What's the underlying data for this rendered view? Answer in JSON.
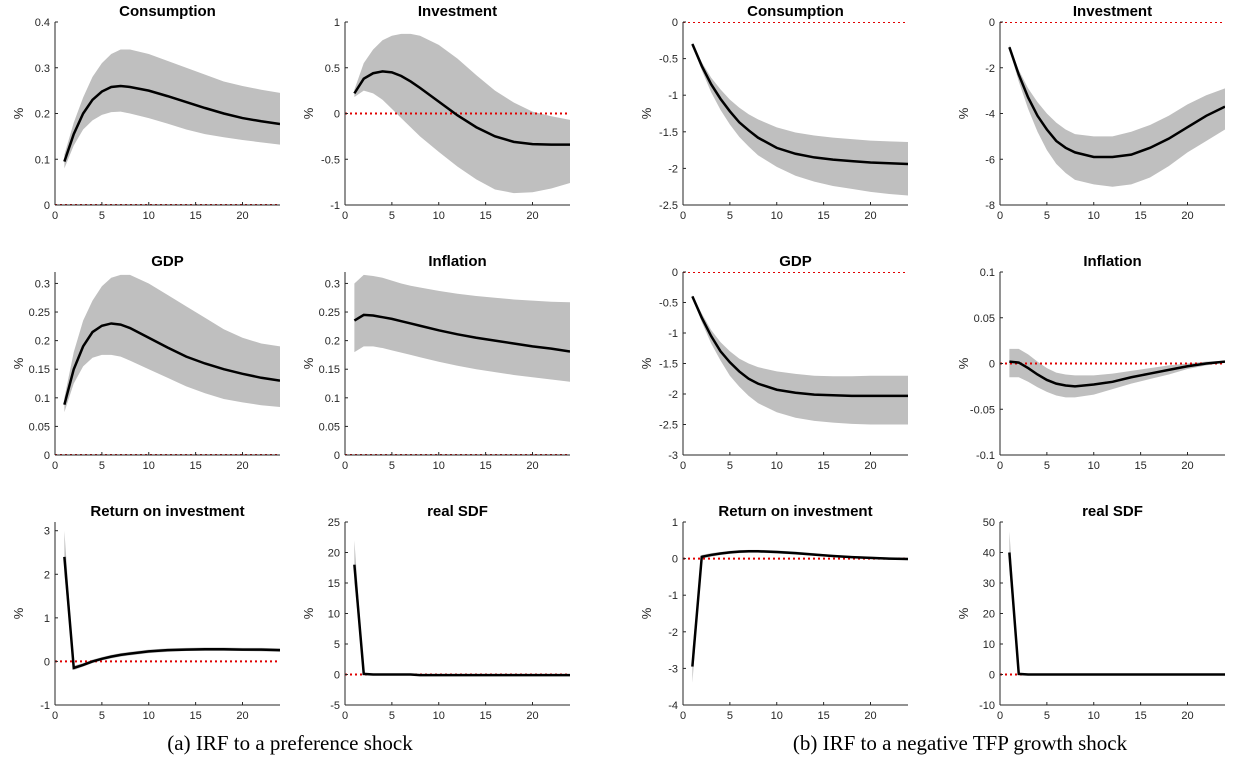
{
  "chart_data": [
    {
      "type": "line",
      "title": "Consumption",
      "ylabel": "%",
      "x": [
        1,
        2,
        3,
        4,
        5,
        6,
        7,
        8,
        10,
        12,
        14,
        16,
        18,
        20,
        22,
        24
      ],
      "values": [
        0.095,
        0.155,
        0.2,
        0.23,
        0.248,
        0.258,
        0.26,
        0.258,
        0.25,
        0.238,
        0.225,
        0.212,
        0.2,
        0.19,
        0.183,
        0.177
      ],
      "band_lower": [
        0.08,
        0.13,
        0.165,
        0.185,
        0.197,
        0.203,
        0.204,
        0.2,
        0.19,
        0.178,
        0.165,
        0.155,
        0.148,
        0.142,
        0.137,
        0.132
      ],
      "band_upper": [
        0.11,
        0.18,
        0.235,
        0.28,
        0.31,
        0.33,
        0.34,
        0.34,
        0.33,
        0.315,
        0.3,
        0.285,
        0.27,
        0.26,
        0.252,
        0.245
      ],
      "xlim": [
        0,
        24
      ],
      "xticks": [
        0,
        5,
        10,
        15,
        20
      ],
      "ylim": [
        0,
        0.4
      ],
      "yticks": [
        0,
        0.1,
        0.2,
        0.3,
        0.4
      ],
      "hline": 0
    },
    {
      "type": "line",
      "title": "Investment",
      "ylabel": "%",
      "x": [
        1,
        2,
        3,
        4,
        5,
        6,
        7,
        8,
        10,
        12,
        14,
        16,
        18,
        20,
        22,
        24
      ],
      "values": [
        0.22,
        0.38,
        0.44,
        0.46,
        0.45,
        0.41,
        0.35,
        0.28,
        0.13,
        -0.02,
        -0.15,
        -0.25,
        -0.31,
        -0.335,
        -0.34,
        -0.34
      ],
      "band_lower": [
        0.18,
        0.25,
        0.22,
        0.15,
        0.05,
        -0.05,
        -0.15,
        -0.25,
        -0.42,
        -0.58,
        -0.72,
        -0.83,
        -0.87,
        -0.86,
        -0.82,
        -0.76
      ],
      "band_upper": [
        0.26,
        0.55,
        0.7,
        0.8,
        0.85,
        0.87,
        0.87,
        0.85,
        0.75,
        0.6,
        0.42,
        0.25,
        0.12,
        0.02,
        -0.03,
        -0.07
      ],
      "xlim": [
        0,
        24
      ],
      "xticks": [
        0,
        5,
        10,
        15,
        20
      ],
      "ylim": [
        -1,
        1
      ],
      "yticks": [
        -1,
        -0.5,
        0,
        0.5,
        1
      ],
      "hline": 0
    },
    {
      "type": "line",
      "title": "GDP",
      "ylabel": "%",
      "x": [
        1,
        2,
        3,
        4,
        5,
        6,
        7,
        8,
        10,
        12,
        14,
        16,
        18,
        20,
        22,
        24
      ],
      "values": [
        0.088,
        0.15,
        0.19,
        0.215,
        0.226,
        0.23,
        0.228,
        0.222,
        0.205,
        0.188,
        0.172,
        0.16,
        0.15,
        0.142,
        0.135,
        0.13
      ],
      "band_lower": [
        0.075,
        0.125,
        0.155,
        0.17,
        0.175,
        0.175,
        0.172,
        0.165,
        0.15,
        0.135,
        0.12,
        0.108,
        0.098,
        0.092,
        0.087,
        0.084
      ],
      "band_upper": [
        0.1,
        0.18,
        0.235,
        0.27,
        0.295,
        0.31,
        0.315,
        0.315,
        0.3,
        0.28,
        0.26,
        0.24,
        0.22,
        0.205,
        0.195,
        0.19
      ],
      "xlim": [
        0,
        24
      ],
      "xticks": [
        0,
        5,
        10,
        15,
        20
      ],
      "ylim": [
        0,
        0.32
      ],
      "yticks": [
        0,
        0.05,
        0.1,
        0.15,
        0.2,
        0.25,
        0.3
      ],
      "hline": 0
    },
    {
      "type": "line",
      "title": "Inflation",
      "ylabel": "%",
      "x": [
        1,
        2,
        3,
        4,
        5,
        6,
        7,
        8,
        10,
        12,
        14,
        16,
        18,
        20,
        22,
        24
      ],
      "values": [
        0.235,
        0.245,
        0.244,
        0.241,
        0.238,
        0.234,
        0.23,
        0.226,
        0.218,
        0.211,
        0.205,
        0.2,
        0.195,
        0.19,
        0.186,
        0.181
      ],
      "band_lower": [
        0.18,
        0.19,
        0.19,
        0.187,
        0.183,
        0.179,
        0.175,
        0.171,
        0.163,
        0.156,
        0.15,
        0.145,
        0.14,
        0.136,
        0.132,
        0.128
      ],
      "band_upper": [
        0.3,
        0.315,
        0.313,
        0.31,
        0.305,
        0.3,
        0.296,
        0.293,
        0.287,
        0.282,
        0.278,
        0.275,
        0.272,
        0.27,
        0.268,
        0.267
      ],
      "xlim": [
        0,
        24
      ],
      "xticks": [
        0,
        5,
        10,
        15,
        20
      ],
      "ylim": [
        0,
        0.32
      ],
      "yticks": [
        0,
        0.05,
        0.1,
        0.15,
        0.2,
        0.25,
        0.3
      ],
      "hline": 0
    },
    {
      "type": "line",
      "title": "Return on investment",
      "ylabel": "%",
      "x": [
        1,
        2,
        3,
        4,
        5,
        6,
        7,
        8,
        10,
        12,
        14,
        16,
        18,
        20,
        22,
        24
      ],
      "values": [
        2.4,
        -0.15,
        -0.08,
        0,
        0.06,
        0.11,
        0.15,
        0.18,
        0.23,
        0.26,
        0.27,
        0.28,
        0.28,
        0.27,
        0.27,
        0.26
      ],
      "band_lower": [
        2.0,
        -0.2,
        -0.12,
        -0.04,
        0.02,
        0.07,
        0.11,
        0.14,
        0.19,
        0.22,
        0.24,
        0.24,
        0.24,
        0.24,
        0.23,
        0.22
      ],
      "band_upper": [
        3.0,
        -0.1,
        -0.04,
        0.04,
        0.1,
        0.15,
        0.19,
        0.22,
        0.27,
        0.3,
        0.31,
        0.32,
        0.32,
        0.31,
        0.31,
        0.3
      ],
      "xlim": [
        0,
        24
      ],
      "xticks": [
        0,
        5,
        10,
        15,
        20
      ],
      "ylim": [
        -1,
        3.2
      ],
      "yticks": [
        -1,
        0,
        1,
        2,
        3
      ],
      "hline": 0
    },
    {
      "type": "line",
      "title": "real SDF",
      "ylabel": "%",
      "x": [
        1,
        2,
        3,
        4,
        5,
        6,
        7,
        8,
        10,
        12,
        14,
        16,
        18,
        20,
        22,
        24
      ],
      "values": [
        18,
        0.1,
        0,
        0,
        0,
        0,
        0,
        -0.1,
        -0.1,
        -0.1,
        -0.1,
        -0.1,
        -0.1,
        -0.1,
        -0.1,
        -0.1
      ],
      "band_lower": [
        15,
        0,
        -0.1,
        -0.1,
        -0.1,
        -0.1,
        -0.1,
        -0.2,
        -0.2,
        -0.2,
        -0.2,
        -0.2,
        -0.2,
        -0.2,
        -0.2,
        -0.2
      ],
      "band_upper": [
        22,
        0.3,
        0.1,
        0.1,
        0.1,
        0.1,
        0.1,
        0,
        0,
        0,
        0,
        0,
        0,
        0,
        0,
        0
      ],
      "xlim": [
        0,
        24
      ],
      "xticks": [
        0,
        5,
        10,
        15,
        20
      ],
      "ylim": [
        -5,
        25
      ],
      "yticks": [
        -5,
        0,
        5,
        10,
        15,
        20,
        25
      ],
      "hline": 0
    },
    {
      "type": "line",
      "title": "Consumption",
      "ylabel": "%",
      "x": [
        1,
        2,
        3,
        4,
        5,
        6,
        7,
        8,
        10,
        12,
        14,
        16,
        18,
        20,
        22,
        24
      ],
      "values": [
        -0.3,
        -0.6,
        -0.85,
        -1.05,
        -1.22,
        -1.37,
        -1.48,
        -1.58,
        -1.72,
        -1.8,
        -1.85,
        -1.88,
        -1.9,
        -1.92,
        -1.93,
        -1.94
      ],
      "band_lower": [
        -0.32,
        -0.66,
        -0.96,
        -1.2,
        -1.4,
        -1.57,
        -1.7,
        -1.82,
        -1.98,
        -2.1,
        -2.18,
        -2.24,
        -2.28,
        -2.32,
        -2.35,
        -2.37
      ],
      "band_upper": [
        -0.28,
        -0.55,
        -0.76,
        -0.92,
        -1.06,
        -1.17,
        -1.26,
        -1.33,
        -1.44,
        -1.51,
        -1.55,
        -1.58,
        -1.6,
        -1.62,
        -1.63,
        -1.64
      ],
      "xlim": [
        0,
        24
      ],
      "xticks": [
        0,
        5,
        10,
        15,
        20
      ],
      "ylim": [
        -2.5,
        0
      ],
      "yticks": [
        -2.5,
        -2,
        -1.5,
        -1,
        -0.5,
        0
      ],
      "hline": 0
    },
    {
      "type": "line",
      "title": "Investment",
      "ylabel": "%",
      "x": [
        1,
        2,
        3,
        4,
        5,
        6,
        7,
        8,
        10,
        12,
        14,
        16,
        18,
        20,
        22,
        24
      ],
      "values": [
        -1.1,
        -2.3,
        -3.3,
        -4.1,
        -4.7,
        -5.2,
        -5.5,
        -5.7,
        -5.9,
        -5.9,
        -5.8,
        -5.5,
        -5.1,
        -4.6,
        -4.1,
        -3.7
      ],
      "band_lower": [
        -1.2,
        -2.6,
        -3.8,
        -4.8,
        -5.6,
        -6.2,
        -6.6,
        -6.9,
        -7.1,
        -7.2,
        -7.1,
        -6.8,
        -6.3,
        -5.7,
        -5.2,
        -4.7
      ],
      "band_upper": [
        -1.0,
        -2.1,
        -2.9,
        -3.5,
        -4.0,
        -4.4,
        -4.7,
        -4.9,
        -5.0,
        -5.0,
        -4.8,
        -4.5,
        -4.1,
        -3.6,
        -3.2,
        -2.9
      ],
      "xlim": [
        0,
        24
      ],
      "xticks": [
        0,
        5,
        10,
        15,
        20
      ],
      "ylim": [
        -8,
        0
      ],
      "yticks": [
        -8,
        -6,
        -4,
        -2,
        0
      ],
      "hline": 0
    },
    {
      "type": "line",
      "title": "GDP",
      "ylabel": "%",
      "x": [
        1,
        2,
        3,
        4,
        5,
        6,
        7,
        8,
        10,
        12,
        14,
        16,
        18,
        20,
        22,
        24
      ],
      "values": [
        -0.4,
        -0.75,
        -1.05,
        -1.3,
        -1.48,
        -1.63,
        -1.75,
        -1.83,
        -1.93,
        -1.98,
        -2.01,
        -2.02,
        -2.03,
        -2.03,
        -2.03,
        -2.03
      ],
      "band_lower": [
        -0.42,
        -0.82,
        -1.17,
        -1.45,
        -1.7,
        -1.88,
        -2.03,
        -2.15,
        -2.3,
        -2.39,
        -2.44,
        -2.47,
        -2.49,
        -2.5,
        -2.5,
        -2.5
      ],
      "band_upper": [
        -0.38,
        -0.68,
        -0.95,
        -1.15,
        -1.3,
        -1.42,
        -1.5,
        -1.56,
        -1.63,
        -1.67,
        -1.7,
        -1.71,
        -1.71,
        -1.7,
        -1.7,
        -1.7
      ],
      "xlim": [
        0,
        24
      ],
      "xticks": [
        0,
        5,
        10,
        15,
        20
      ],
      "ylim": [
        -3,
        0
      ],
      "yticks": [
        -3,
        -2.5,
        -2,
        -1.5,
        -1,
        -0.5,
        0
      ],
      "hline": 0
    },
    {
      "type": "line",
      "title": "Inflation",
      "ylabel": "%",
      "x": [
        1,
        2,
        3,
        4,
        5,
        6,
        7,
        8,
        10,
        12,
        14,
        16,
        18,
        20,
        22,
        24
      ],
      "values": [
        0.002,
        0.001,
        -0.005,
        -0.012,
        -0.018,
        -0.022,
        -0.024,
        -0.025,
        -0.023,
        -0.02,
        -0.015,
        -0.011,
        -0.007,
        -0.003,
        0,
        0.002
      ],
      "band_lower": [
        -0.015,
        -0.015,
        -0.02,
        -0.026,
        -0.031,
        -0.035,
        -0.037,
        -0.037,
        -0.034,
        -0.028,
        -0.022,
        -0.017,
        -0.012,
        -0.006,
        -0.002,
        0.001
      ],
      "band_upper": [
        0.016,
        0.016,
        0.01,
        0.002,
        -0.005,
        -0.01,
        -0.012,
        -0.013,
        -0.013,
        -0.011,
        -0.008,
        -0.005,
        -0.002,
        0,
        0.002,
        0.003
      ],
      "xlim": [
        0,
        24
      ],
      "xticks": [
        0,
        5,
        10,
        15,
        20
      ],
      "ylim": [
        -0.1,
        0.1
      ],
      "yticks": [
        -0.1,
        -0.05,
        0,
        0.05,
        0.1
      ],
      "hline": 0
    },
    {
      "type": "line",
      "title": "Return on investment",
      "ylabel": "%",
      "x": [
        1,
        2,
        3,
        4,
        5,
        6,
        7,
        8,
        10,
        12,
        14,
        16,
        18,
        20,
        22,
        24
      ],
      "values": [
        -2.95,
        0.05,
        0.1,
        0.14,
        0.17,
        0.19,
        0.2,
        0.2,
        0.18,
        0.15,
        0.11,
        0.07,
        0.04,
        0.02,
        0,
        -0.01
      ],
      "band_lower": [
        -3.4,
        0,
        0.05,
        0.1,
        0.13,
        0.15,
        0.16,
        0.16,
        0.14,
        0.11,
        0.08,
        0.04,
        0.01,
        -0.01,
        -0.03,
        -0.04
      ],
      "band_upper": [
        -2.5,
        0.1,
        0.15,
        0.18,
        0.21,
        0.23,
        0.24,
        0.24,
        0.22,
        0.19,
        0.15,
        0.1,
        0.07,
        0.05,
        0.03,
        0.02
      ],
      "xlim": [
        0,
        24
      ],
      "xticks": [
        0,
        5,
        10,
        15,
        20
      ],
      "ylim": [
        -4,
        1
      ],
      "yticks": [
        -4,
        -3,
        -2,
        -1,
        0,
        1
      ],
      "hline": 0
    },
    {
      "type": "line",
      "title": "real SDF",
      "ylabel": "%",
      "x": [
        1,
        2,
        3,
        4,
        5,
        6,
        7,
        8,
        10,
        12,
        14,
        16,
        18,
        20,
        22,
        24
      ],
      "values": [
        40,
        0.2,
        0,
        0,
        0,
        0,
        0,
        0,
        0,
        0,
        0,
        0,
        0,
        0,
        0,
        0
      ],
      "band_lower": [
        34,
        0,
        -0.2,
        -0.2,
        -0.2,
        -0.2,
        -0.2,
        -0.2,
        -0.2,
        -0.2,
        -0.2,
        -0.2,
        -0.2,
        -0.2,
        -0.2,
        -0.2
      ],
      "band_upper": [
        47,
        0.4,
        0.2,
        0.2,
        0.2,
        0.2,
        0.2,
        0.2,
        0.2,
        0.2,
        0.2,
        0.2,
        0.2,
        0.2,
        0.2,
        0.2
      ],
      "xlim": [
        0,
        24
      ],
      "xticks": [
        0,
        5,
        10,
        15,
        20
      ],
      "ylim": [
        -10,
        50
      ],
      "yticks": [
        -10,
        0,
        10,
        20,
        30,
        40,
        50
      ],
      "hline": 0
    }
  ],
  "captions": [
    "(a) IRF to a preference shock",
    "(b) IRF to a negative TFP growth shock"
  ]
}
